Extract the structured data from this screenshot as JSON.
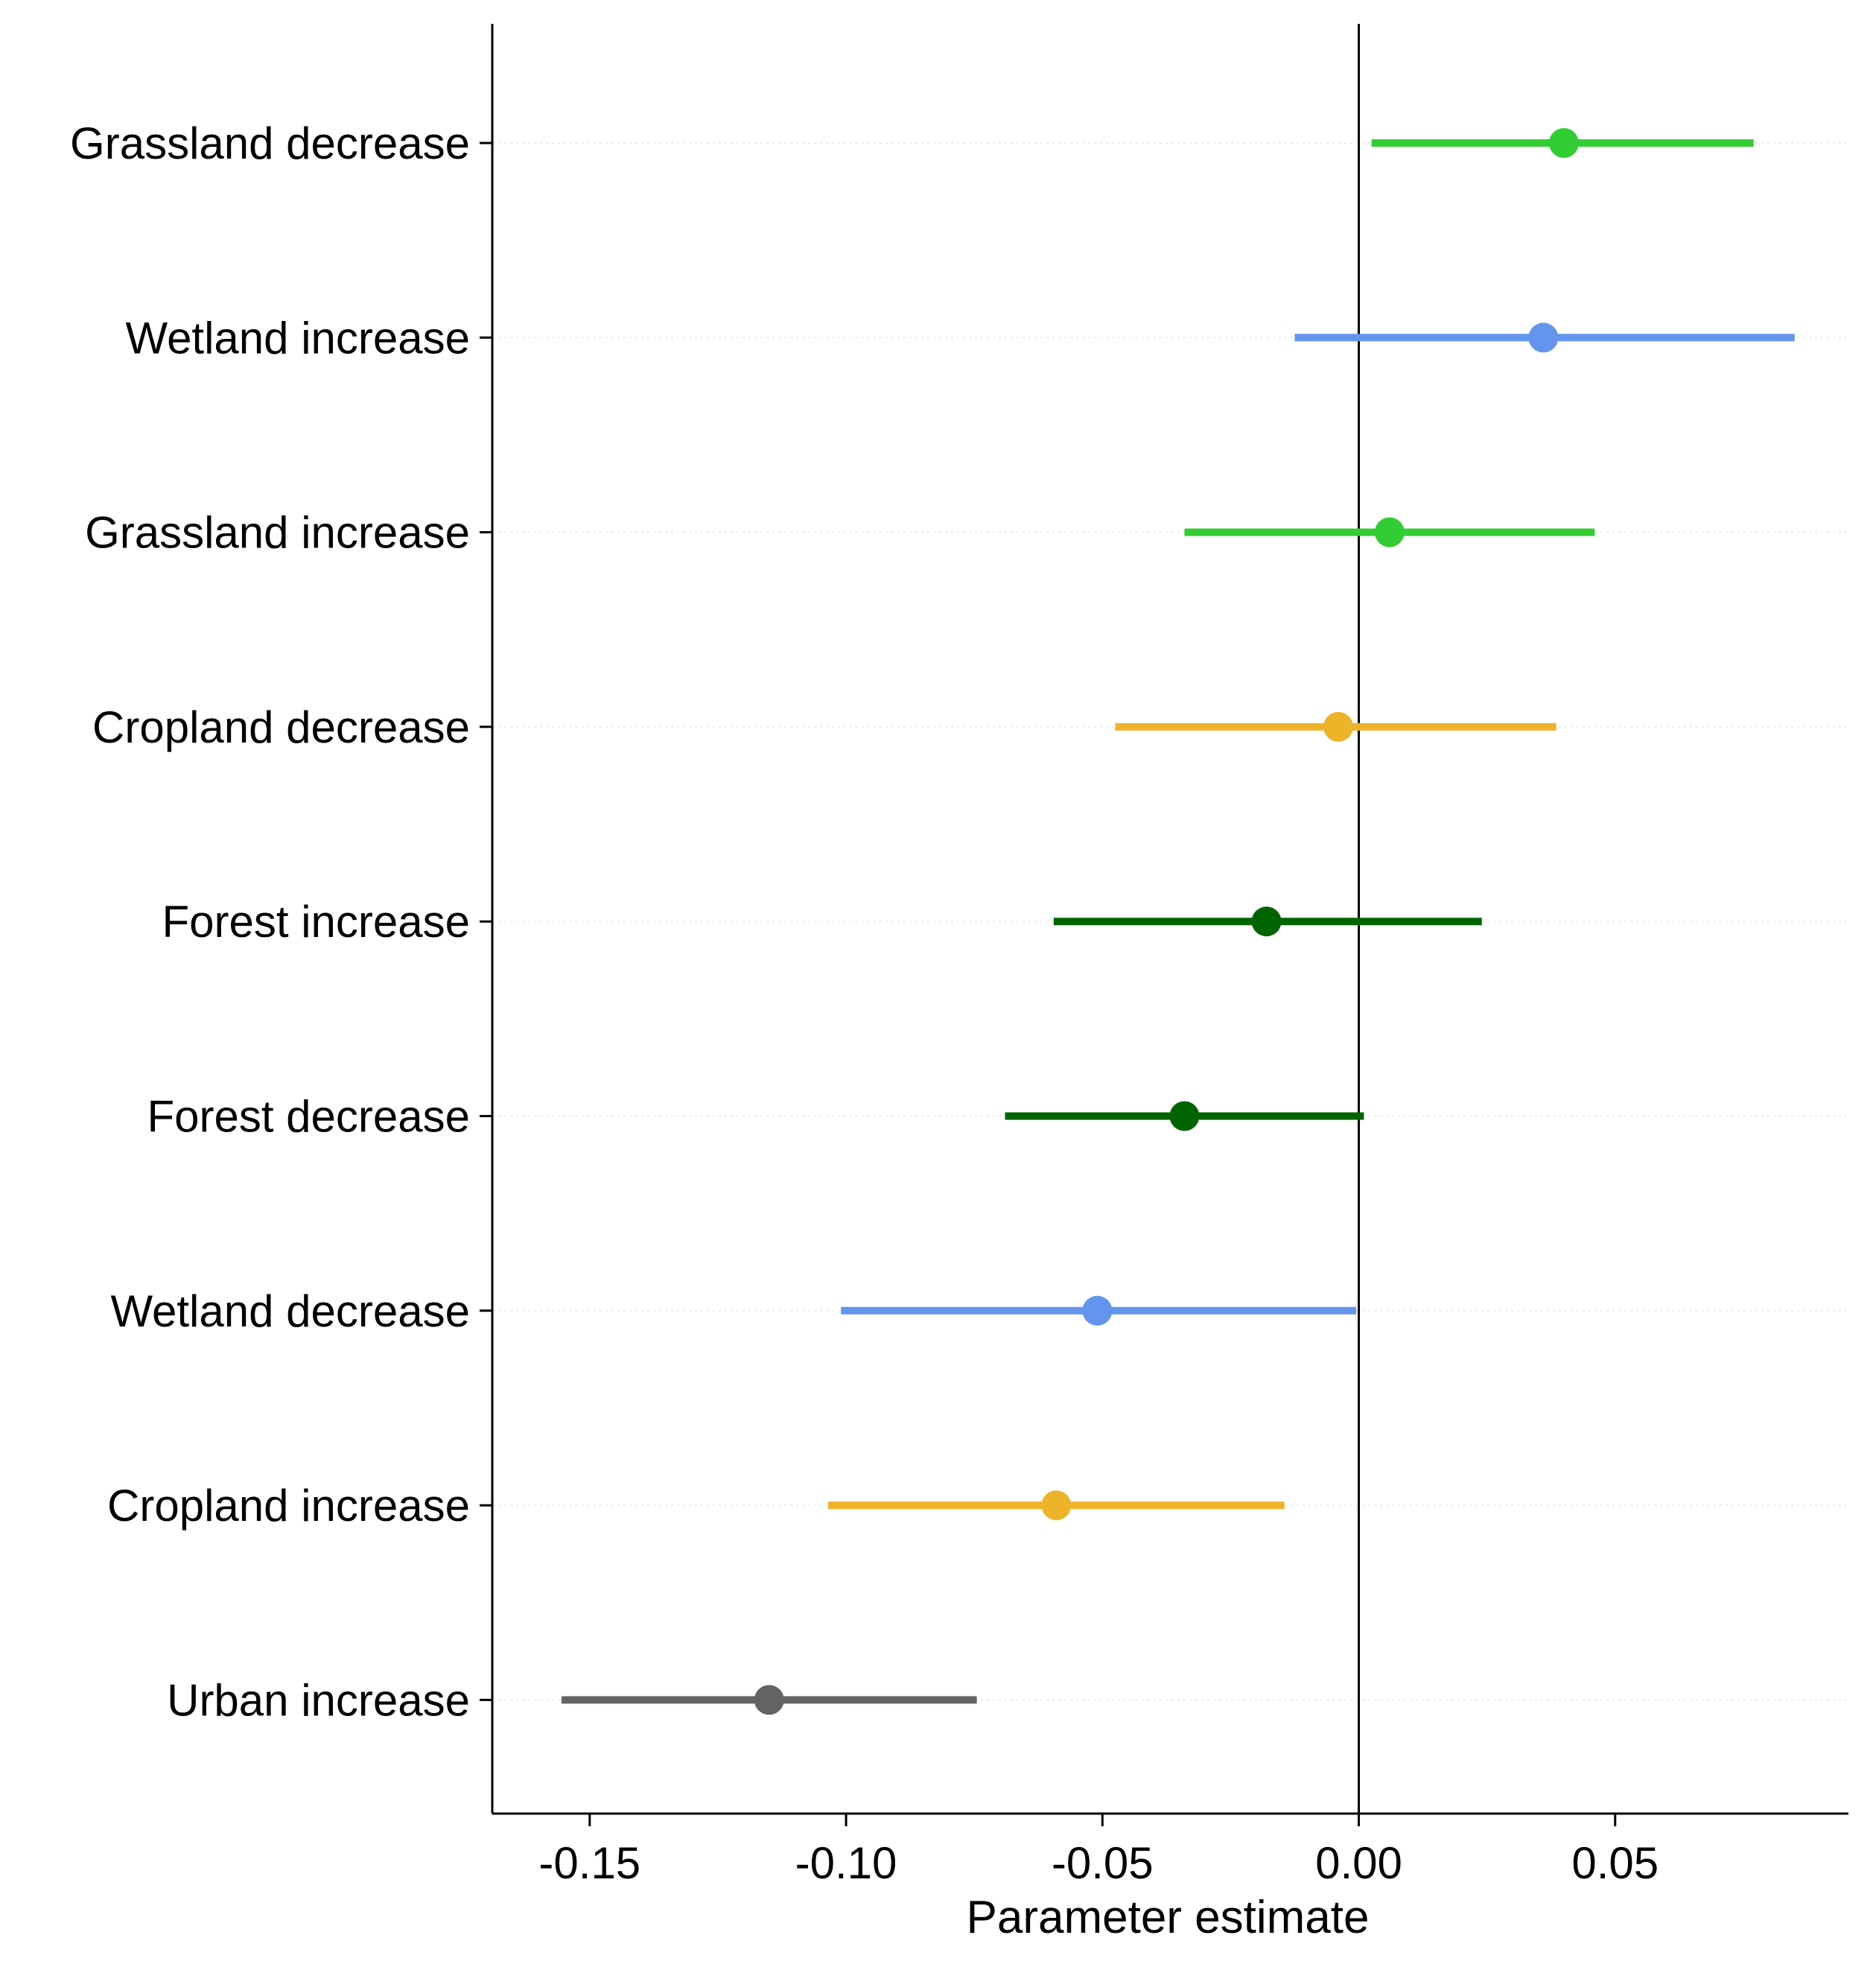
{
  "chart_data": {
    "type": "scatter",
    "subtype": "coefficient-plot-with-interval-bars",
    "title": "",
    "xlabel": "Parameter estimate",
    "ylabel": "",
    "xlim": [
      -0.169,
      0.0955
    ],
    "xticks": [
      -0.15,
      -0.1,
      -0.05,
      0.0,
      0.05
    ],
    "xtick_labels": [
      "-0.15",
      "-0.10",
      "-0.05",
      "0.00",
      "0.05"
    ],
    "reference_line_x": 0.0,
    "grid": "faint horizontal lines at each category",
    "legend": "none",
    "categories": [
      "Grassland decrease",
      "Wetland increase",
      "Grassland increase",
      "Cropland decrease",
      "Forest increase",
      "Forest decrease",
      "Wetland decrease",
      "Cropland increase",
      "Urban increase"
    ],
    "estimates": [
      0.04,
      0.036,
      0.006,
      -0.004,
      -0.018,
      -0.034,
      -0.051,
      -0.059,
      -0.115
    ],
    "lower": [
      0.0025,
      -0.0125,
      -0.034,
      -0.0475,
      -0.0595,
      -0.069,
      -0.101,
      -0.1035,
      -0.1555
    ],
    "upper": [
      0.077,
      0.085,
      0.046,
      0.0385,
      0.024,
      0.001,
      -0.0005,
      -0.0145,
      -0.0745
    ],
    "colors": [
      "#32CD32",
      "#6495ED",
      "#32CD32",
      "#EDB42A",
      "#006400",
      "#006400",
      "#6495ED",
      "#EDB42A",
      "#636363"
    ]
  }
}
